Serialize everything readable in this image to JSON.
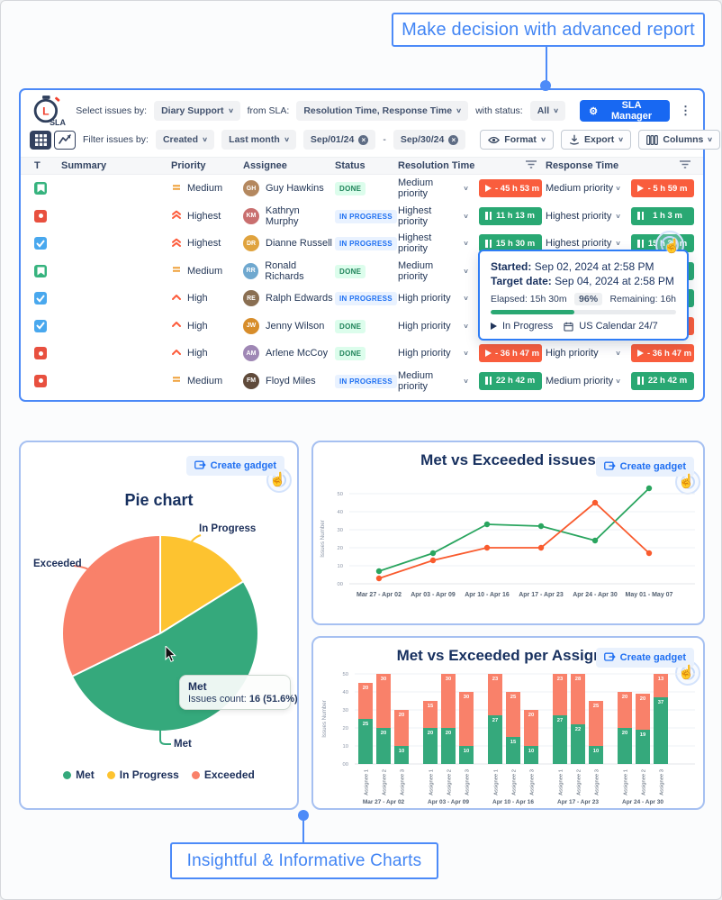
{
  "frame": {
    "top_callout": "Make decision with advanced report",
    "bottom_callout": "Insightful & Informative Charts"
  },
  "ui": {
    "create_gadget": "Create gadget"
  },
  "toolbar": {
    "logo_text": "SLA",
    "select_label": "Select issues by:",
    "select_value": "Diary Support",
    "sla_label": "from SLA:",
    "sla_value": "Resolution Time, Response Time",
    "status_label": "with status:",
    "status_value": "All",
    "manager_button": "SLA Manager",
    "filter_label": "Filter issues by:",
    "filter_value": "Created",
    "range_value": "Last month",
    "date_from": "Sep/01/24",
    "date_separator": "-",
    "date_to": "Sep/30/24",
    "format_button": "Format",
    "export_button": "Export",
    "columns_button": "Columns"
  },
  "table": {
    "headers": {
      "t": "T",
      "summary": "Summary",
      "priority": "Priority",
      "assignee": "Assignee",
      "status": "Status",
      "resolution": "Resolution Time",
      "response": "Response Time"
    },
    "rows": [
      {
        "type": "story",
        "priority": "Medium",
        "assignee": "Guy Hawkins",
        "initials": "GH",
        "avatar_color": "#b4885f",
        "status": "DONE",
        "res_priority": "Medium priority",
        "res_badge": "- 45 h 53 m",
        "res_color": "red",
        "resp_priority": "Medium priority",
        "resp_badge": "- 5 h 59 m",
        "resp_color": "red"
      },
      {
        "type": "bug",
        "priority": "Highest",
        "assignee": "Kathryn Murphy",
        "initials": "KM",
        "avatar_color": "#c96f6f",
        "status": "IN PROGRESS",
        "res_priority": "Highest priority",
        "res_badge": "11 h 13 m",
        "res_color": "green",
        "resp_priority": "Highest priority",
        "resp_badge": "1 h 3 m",
        "resp_color": "green"
      },
      {
        "type": "task",
        "priority": "Highest",
        "assignee": "Dianne Russell",
        "initials": "DR",
        "avatar_color": "#e0a33e",
        "status": "IN PROGRESS",
        "res_priority": "Highest priority",
        "res_badge": "15 h 30 m",
        "res_color": "green",
        "resp_priority": "Highest priority",
        "resp_badge": "15 h 30 m",
        "resp_color": "green",
        "hovered": true
      },
      {
        "type": "story",
        "priority": "Medium",
        "assignee": "Ronald Richards",
        "initials": "RR",
        "avatar_color": "#6fa8cf",
        "status": "DONE",
        "res_priority": "Medium priority",
        "res_badge": null,
        "res_color": null,
        "resp_priority": null,
        "resp_badge": "",
        "resp_color": "green",
        "covered_by_tooltip": true
      },
      {
        "type": "task",
        "priority": "High",
        "assignee": "Ralph Edwards",
        "initials": "RE",
        "avatar_color": "#8a6f52",
        "status": "IN PROGRESS",
        "res_priority": "High priority",
        "res_badge": null,
        "res_color": null,
        "resp_priority": null,
        "resp_badge": "",
        "resp_color": "green",
        "covered_by_tooltip": true
      },
      {
        "type": "task",
        "priority": "High",
        "assignee": "Jenny Wilson",
        "initials": "JW",
        "avatar_color": "#d78d2b",
        "status": "DONE",
        "res_priority": "High priority",
        "res_badge": null,
        "res_color": null,
        "resp_priority": null,
        "resp_badge": "",
        "resp_color": "red",
        "covered_by_tooltip": true
      },
      {
        "type": "bug",
        "priority": "High",
        "assignee": "Arlene McCoy",
        "initials": "AM",
        "avatar_color": "#9f87b5",
        "status": "DONE",
        "res_priority": "High priority",
        "res_badge": "- 36 h 47 m",
        "res_color": "red",
        "resp_priority": "High priority",
        "resp_badge": "- 36 h 47 m",
        "resp_color": "red"
      },
      {
        "type": "bug",
        "priority": "Medium",
        "assignee": "Floyd Miles",
        "initials": "FM",
        "avatar_color": "#5f4a3a",
        "status": "IN PROGRESS",
        "res_priority": "Medium priority",
        "res_badge": "22 h 42 m",
        "res_color": "green",
        "resp_priority": "Medium priority",
        "resp_badge": "22 h 42 m",
        "resp_color": "green"
      }
    ]
  },
  "sla_tooltip": {
    "started_label": "Started:",
    "started_value": "Sep 02, 2024 at 2:58 PM",
    "target_label": "Target date:",
    "target_value": "Sep 04, 2024 at 2:58 PM",
    "elapsed": "Elapsed: 15h 30m",
    "percent": "96%",
    "remaining": "Remaining: 16h",
    "progress_pct": 45,
    "status": "In Progress",
    "calendar": "US Calendar 24/7"
  },
  "chart_data": [
    {
      "type": "pie",
      "title": "Pie chart",
      "slices": [
        {
          "label": "In Progress",
          "pct": 16.1,
          "count": 5,
          "color": "#fdc330"
        },
        {
          "label": "Met",
          "pct": 51.6,
          "count": 16,
          "color": "#35a97c"
        },
        {
          "label": "Exceeded",
          "pct": 32.3,
          "count": 10,
          "color": "#f9816a"
        }
      ],
      "legend_order": [
        "Met",
        "In Progress",
        "Exceeded"
      ],
      "hover": {
        "slice": "Met",
        "label": "Issues count:",
        "value": "16 (51.6%)"
      }
    },
    {
      "type": "line",
      "title": "Met vs Exceeded issues",
      "ylabel": "Issues Number",
      "ylim": [
        0,
        50
      ],
      "yticks": [
        "00",
        "10",
        "20",
        "30",
        "40",
        "50"
      ],
      "grid": true,
      "categories": [
        "Mar 27 - Apr 02",
        "Apr 03 - Apr 09",
        "Apr 10 - Apr 16",
        "Apr 17 - Apr 23",
        "Apr 24 - Apr 30",
        "May 01 - May 07"
      ],
      "series": [
        {
          "name": "Met",
          "color": "#2aa55f",
          "values": [
            7,
            17,
            33,
            32,
            24,
            53
          ]
        },
        {
          "name": "Exceeded",
          "color": "#f95b2e",
          "values": [
            3,
            13,
            20,
            20,
            45,
            17
          ]
        }
      ]
    },
    {
      "type": "bar",
      "title": "Met vs Exceeded per Assignee",
      "ylabel": "Issues Number",
      "ylim": [
        0,
        50
      ],
      "yticks": [
        "00",
        "10",
        "20",
        "30",
        "40",
        "50"
      ],
      "grid": true,
      "stacked": true,
      "series_colors": {
        "met": "#35a97c",
        "exceeded": "#f9816a"
      },
      "groups": [
        {
          "label": "Mar 27 - Apr 02",
          "bars": [
            {
              "name": "Assignee 1",
              "met": 25,
              "exceeded": 20
            },
            {
              "name": "Assignee 2",
              "met": 20,
              "exceeded": 30
            },
            {
              "name": "Assignee 3",
              "met": 10,
              "exceeded": 20
            }
          ]
        },
        {
          "label": "Apr 03 - Apr 09",
          "bars": [
            {
              "name": "Assignee 1",
              "met": 20,
              "exceeded": 15
            },
            {
              "name": "Assignee 2",
              "met": 20,
              "exceeded": 30
            },
            {
              "name": "Assignee 3",
              "met": 10,
              "exceeded": 30
            }
          ]
        },
        {
          "label": "Apr 10 - Apr 16",
          "bars": [
            {
              "name": "Assignee 1",
              "met": 27,
              "exceeded": 23
            },
            {
              "name": "Assignee 2",
              "met": 15,
              "exceeded": 25
            },
            {
              "name": "Assignee 3",
              "met": 10,
              "exceeded": 20
            }
          ]
        },
        {
          "label": "Apr 17 - Apr 23",
          "bars": [
            {
              "name": "Assignee 1",
              "met": 27,
              "exceeded": 23
            },
            {
              "name": "Assignee 2",
              "met": 22,
              "exceeded": 28
            },
            {
              "name": "Assignee 3",
              "met": 10,
              "exceeded": 25
            }
          ]
        },
        {
          "label": "Apr 24 - Apr 30",
          "bars": [
            {
              "name": "Assignee 1",
              "met": 20,
              "exceeded": 20
            },
            {
              "name": "Assignee 2",
              "met": 19,
              "exceeded": 20
            },
            {
              "name": "Assignee 3",
              "met": 37,
              "exceeded": 13
            }
          ]
        }
      ]
    }
  ]
}
